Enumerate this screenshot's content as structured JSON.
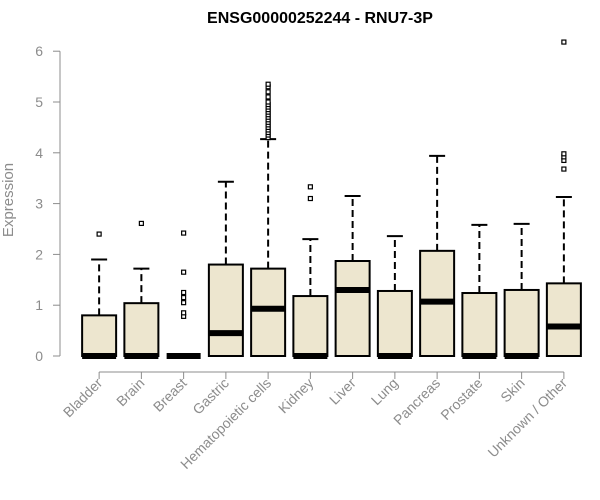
{
  "chart_data": {
    "type": "boxplot",
    "title": "ENSG00000252244 - RNU7-3P",
    "xlabel": "",
    "ylabel": "Expression",
    "ylim": [
      0,
      6.3
    ],
    "yticks": [
      0,
      1,
      2,
      3,
      4,
      5,
      6
    ],
    "grid": false,
    "box_fill": "#ede6cf",
    "categories": [
      "Bladder",
      "Brain",
      "Breast",
      "Gastric",
      "Hematopoietic cells",
      "Kidney",
      "Liver",
      "Lung",
      "Pancreas",
      "Prostate",
      "Skin",
      "Unknown / Other"
    ],
    "boxes": [
      {
        "q1": 0,
        "median": 0,
        "q3": 0.8,
        "whisker_low": 0,
        "whisker_high": 1.9,
        "outliers": [
          2.4
        ]
      },
      {
        "q1": 0,
        "median": 0,
        "q3": 1.04,
        "whisker_low": 0,
        "whisker_high": 1.72,
        "outliers": [
          2.61
        ]
      },
      {
        "q1": 0,
        "median": 0,
        "q3": 0,
        "whisker_low": 0,
        "whisker_high": 0,
        "outliers": [
          0.78,
          0.85,
          1.05,
          1.15,
          1.25,
          1.65,
          2.42
        ]
      },
      {
        "q1": 0,
        "median": 0.45,
        "q3": 1.8,
        "whisker_low": 0,
        "whisker_high": 3.43,
        "outliers": []
      },
      {
        "q1": 0,
        "median": 0.93,
        "q3": 1.72,
        "whisker_low": 0,
        "whisker_high": 4.27,
        "outliers": [
          4.3,
          4.35,
          4.4,
          4.45,
          4.5,
          4.55,
          4.6,
          4.65,
          4.7,
          4.75,
          4.8,
          4.85,
          4.9,
          4.95,
          5.0,
          5.1,
          5.2,
          5.3,
          5.35
        ]
      },
      {
        "q1": 0,
        "median": 0,
        "q3": 1.18,
        "whisker_low": 0,
        "whisker_high": 2.3,
        "outliers": [
          3.1,
          3.33
        ]
      },
      {
        "q1": 0,
        "median": 1.3,
        "q3": 1.87,
        "whisker_low": 0,
        "whisker_high": 3.15,
        "outliers": []
      },
      {
        "q1": 0,
        "median": 0,
        "q3": 1.28,
        "whisker_low": 0,
        "whisker_high": 2.36,
        "outliers": []
      },
      {
        "q1": 0,
        "median": 1.07,
        "q3": 2.07,
        "whisker_low": 0,
        "whisker_high": 3.94,
        "outliers": []
      },
      {
        "q1": 0,
        "median": 0,
        "q3": 1.24,
        "whisker_low": 0,
        "whisker_high": 2.58,
        "outliers": []
      },
      {
        "q1": 0,
        "median": 0,
        "q3": 1.3,
        "whisker_low": 0,
        "whisker_high": 2.6,
        "outliers": []
      },
      {
        "q1": 0,
        "median": 0.58,
        "q3": 1.43,
        "whisker_low": 0,
        "whisker_high": 3.13,
        "outliers": [
          3.68,
          3.85,
          3.92,
          3.98,
          6.18
        ]
      }
    ]
  }
}
